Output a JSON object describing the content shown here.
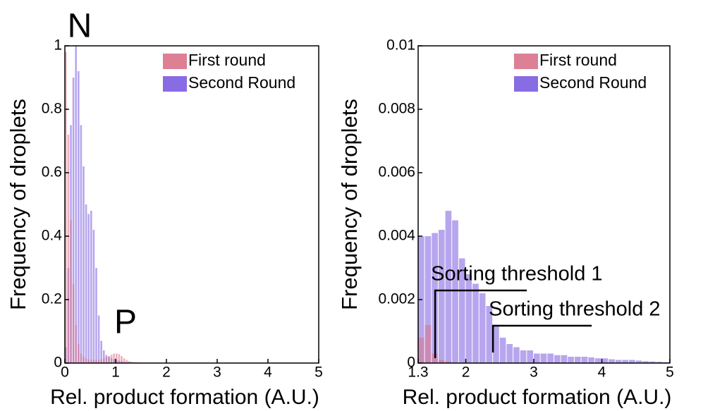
{
  "chart_data": [
    {
      "type": "histogram",
      "xlabel": "Rel. product formation (A.U.)",
      "ylabel": "Frequency of droplets",
      "annotations": [
        "N",
        "P"
      ],
      "xlim": [
        0,
        5
      ],
      "xticks": [
        0,
        1,
        2,
        3,
        4,
        5
      ],
      "ylim": [
        0,
        1
      ],
      "yticks": [
        0,
        0.2,
        0.4,
        0.6,
        0.8,
        1
      ],
      "legend": "upper right",
      "bins": [
        0,
        0.05,
        0.1,
        0.15,
        0.2,
        0.25,
        0.3,
        0.35,
        0.4,
        0.45,
        0.5,
        0.55,
        0.6,
        0.65,
        0.7,
        0.75,
        0.8,
        0.85,
        0.9,
        0.95,
        1,
        1.05,
        1.1,
        1.15,
        1.2,
        1.25,
        1.3,
        1.35,
        1.4,
        1.45,
        1.5,
        1.55,
        1.6,
        1.65,
        1.7,
        1.75,
        1.8,
        1.85,
        1.9,
        1.95,
        2
      ],
      "series": [
        {
          "name": "Second Round",
          "color": "#7b5ce0",
          "values": [
            0.05,
            0.3,
            0.75,
            0.9,
            1,
            0.92,
            0.75,
            0.62,
            0.5,
            0.47,
            0.48,
            0.42,
            0.3,
            0.15,
            0.07,
            0.04,
            0.025,
            0.02,
            0.015,
            0.012,
            0.01,
            0.008,
            0.006,
            0.004,
            0.003,
            0.003,
            0.002,
            0.002,
            0.002,
            0.001,
            0.001,
            0.001,
            0.001,
            0.001,
            0.001,
            0.001,
            0.001,
            0.001,
            0.001,
            0.001
          ]
        },
        {
          "name": "First round",
          "color": "#d9728a",
          "values": [
            0.98,
            0.72,
            0.45,
            0.25,
            0.12,
            0.06,
            0.03,
            0.02,
            0.015,
            0.012,
            0.01,
            0.01,
            0.01,
            0.01,
            0.012,
            0.015,
            0.018,
            0.022,
            0.026,
            0.03,
            0.03,
            0.028,
            0.022,
            0.015,
            0.01,
            0.006,
            0.004,
            0.003,
            0.002,
            0.002,
            0.002,
            0.001,
            0.001,
            0.001,
            0.001,
            0.001,
            0.001,
            0.001,
            0.001,
            0.001
          ]
        }
      ]
    },
    {
      "type": "histogram",
      "xlabel": "Rel. product formation (A.U.)",
      "ylabel": "Frequency of droplets",
      "thresholds": [
        {
          "label": "Sorting threshold 1",
          "value": 1.55
        },
        {
          "label": "Sorting threshold 2",
          "value": 2.4
        }
      ],
      "xlim": [
        1.3,
        5
      ],
      "xticks": [
        1.3,
        2,
        3,
        4,
        5
      ],
      "ylim": [
        0,
        0.01
      ],
      "yticks": [
        0,
        0.002,
        0.004,
        0.006,
        0.008,
        0.01
      ],
      "legend": "upper right",
      "bins": [
        1.3,
        1.4,
        1.5,
        1.6,
        1.7,
        1.8,
        1.9,
        2,
        2.1,
        2.2,
        2.3,
        2.4,
        2.5,
        2.6,
        2.7,
        2.8,
        2.9,
        3,
        3.1,
        3.2,
        3.3,
        3.4,
        3.5,
        3.6,
        3.7,
        3.8,
        3.9,
        4,
        4.1,
        4.2,
        4.3,
        4.4,
        4.5,
        4.6,
        4.7,
        4.8,
        4.9,
        5
      ],
      "series": [
        {
          "name": "Second Round",
          "color": "#7b5ce0",
          "values": [
            0.004,
            0.004,
            0.0041,
            0.0042,
            0.0048,
            0.0045,
            0.0033,
            0.0028,
            0.0025,
            0.0022,
            0.0018,
            0.0012,
            0.0008,
            0.0006,
            0.0005,
            0.0004,
            0.0004,
            0.0003,
            0.0003,
            0.0003,
            0.00025,
            0.00025,
            0.0002,
            0.0002,
            0.0002,
            0.00018,
            0.00015,
            0.00015,
            0.00012,
            0.0001,
            0.0001,
            0.0001,
            8e-05,
            6e-05,
            5e-05,
            4e-05,
            3e-05
          ]
        },
        {
          "name": "First round",
          "color": "#d9728a",
          "values": [
            0.0008,
            0.0012,
            0.0003,
            0.0001,
            5e-05,
            0,
            0,
            0,
            0,
            0,
            0,
            0,
            0,
            0,
            0,
            0,
            0,
            0,
            0,
            0,
            0,
            0,
            0,
            0,
            0,
            0,
            0,
            0,
            0,
            0,
            0,
            0,
            0,
            0,
            0,
            0,
            0
          ]
        }
      ]
    }
  ]
}
